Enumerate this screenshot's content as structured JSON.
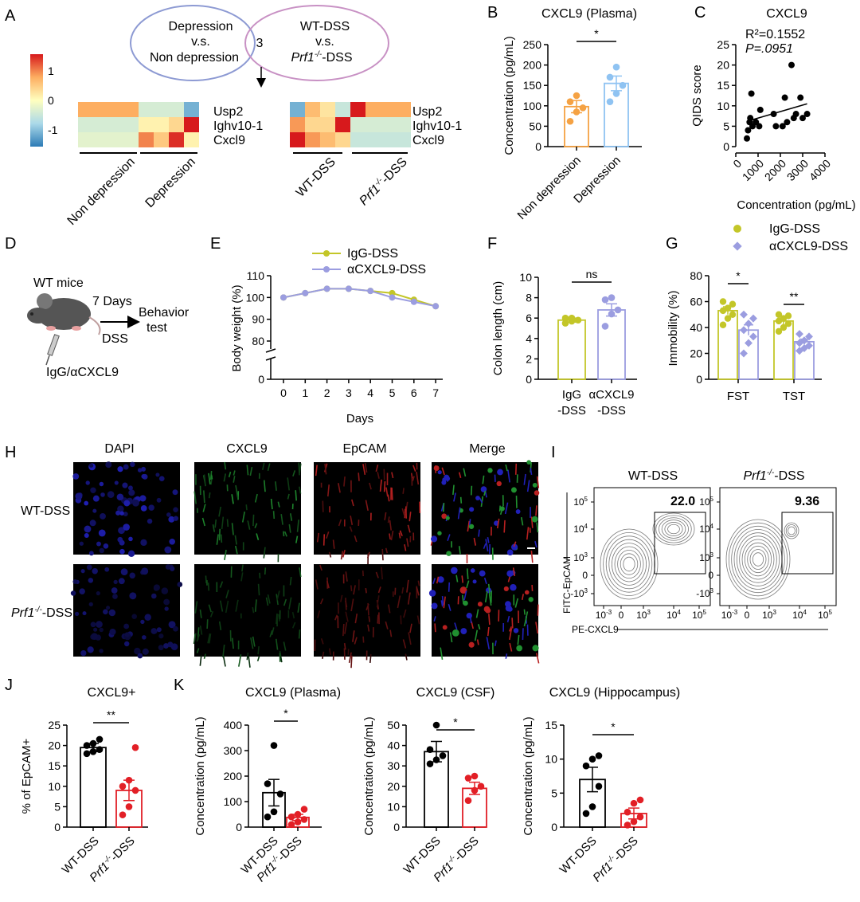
{
  "colors": {
    "orange": "#f5a243",
    "lightblue": "#8fc3f2",
    "olive": "#c3c628",
    "lavender": "#9b9de0",
    "red": "#e21f26",
    "black": "#000000",
    "venn_left": "#8d9ad3",
    "venn_right": "#c891c4"
  },
  "panel_labels": [
    "A",
    "B",
    "C",
    "D",
    "E",
    "F",
    "G",
    "H",
    "I",
    "J",
    "K"
  ],
  "panelA": {
    "venn_left": [
      "Depression",
      "v.s.",
      "Non depression"
    ],
    "venn_center": "3",
    "venn_right": [
      "WT-DSS",
      "v.s.",
      "-DSS"
    ],
    "prf1": "Prf1",
    "prf1_sup": "-/-",
    "colorbar_ticks": [
      "1",
      "0",
      "-1"
    ],
    "genes": [
      "Usp2",
      "Ighv10-1",
      "Cxcl9"
    ],
    "groups_left": [
      "Non depression",
      "Depression"
    ],
    "groups_right": [
      "WT-DSS",
      "-DSS"
    ],
    "heat_left": [
      [
        0.6,
        0.6,
        0.6,
        0.6,
        -0.3,
        -0.3,
        -0.3,
        -0.9
      ],
      [
        -0.3,
        -0.3,
        -0.3,
        -0.3,
        0.1,
        0.1,
        0.3,
        1.3
      ],
      [
        -0.2,
        -0.2,
        -0.2,
        -0.2,
        0.8,
        0.4,
        1.2,
        0.1
      ]
    ],
    "heat_right": [
      [
        -0.9,
        0.5,
        0.2,
        -0.4,
        1.3,
        0.6,
        0.6,
        0.6
      ],
      [
        0.7,
        0.3,
        0.3,
        1.3,
        -0.3,
        -0.3,
        -0.3,
        -0.3
      ],
      [
        1.3,
        0.7,
        0.5,
        0.3,
        -0.4,
        -0.4,
        -0.4,
        -0.4
      ]
    ]
  },
  "panelD": {
    "mice": "WT mice",
    "days": "7 Days",
    "dss": "DSS",
    "behavior": [
      "Behavior",
      "test"
    ],
    "treatment": "IgG/αCXCL9"
  },
  "panelH": {
    "cols": [
      "DAPI",
      "CXCL9",
      "EpCAM",
      "Merge"
    ],
    "col_colors": [
      "#1a1ae6",
      "#1c8c2c",
      "#e21f26",
      "#000000"
    ],
    "row1": "WT-DSS",
    "row2": "-DSS"
  },
  "panelI": {
    "titles": [
      "WT-DSS",
      "-DSS"
    ],
    "percents": [
      "22.0",
      "9.36"
    ],
    "ylabel": "FITC-EpCAM",
    "xlabel": "PE-CXCL9",
    "yticks": [
      "10",
      "10",
      "10",
      "0",
      "-10"
    ],
    "ysup": [
      "5",
      "4",
      "3",
      "",
      "3"
    ],
    "xticks": [
      "10",
      "0",
      "10",
      "10",
      "10"
    ],
    "xsup": [
      "-3",
      "",
      "3",
      "4",
      "5"
    ]
  },
  "chart_data": [
    {
      "id": "B",
      "type": "bar",
      "title": "CXCL9 (Plasma)",
      "ylabel": "Concentration (pg/mL)",
      "ylim": [
        0,
        250
      ],
      "yticks": [
        0,
        50,
        100,
        150,
        200,
        250
      ],
      "categories": [
        "Non depression",
        "Depression"
      ],
      "values": [
        98,
        155
      ],
      "errors": [
        15,
        18
      ],
      "points": [
        [
          62,
          85,
          95,
          110,
          125
        ],
        [
          110,
          130,
          150,
          170,
          195
        ]
      ],
      "sig": "*"
    },
    {
      "id": "C",
      "type": "scatter",
      "title": "CXCL9",
      "r2": "R²=0.1552",
      "p": "P=.0951",
      "xlabel": "Concentration (pg/mL)",
      "ylabel": "QIDS score",
      "xlim": [
        0,
        4000
      ],
      "ylim": [
        0,
        25
      ],
      "xticks": [
        0,
        1000,
        2000,
        3000,
        4000
      ],
      "yticks": [
        0,
        5,
        10,
        15,
        20,
        25
      ],
      "points": [
        [
          500,
          2
        ],
        [
          550,
          4
        ],
        [
          620,
          6
        ],
        [
          650,
          7
        ],
        [
          700,
          13
        ],
        [
          750,
          5
        ],
        [
          900,
          6
        ],
        [
          1050,
          5
        ],
        [
          1100,
          9
        ],
        [
          1700,
          8
        ],
        [
          1800,
          5
        ],
        [
          2100,
          5
        ],
        [
          2200,
          12
        ],
        [
          2300,
          6
        ],
        [
          2500,
          20
        ],
        [
          2600,
          7
        ],
        [
          2700,
          8
        ],
        [
          2900,
          12
        ],
        [
          3000,
          7
        ],
        [
          3200,
          8
        ]
      ],
      "fit": [
        [
          500,
          6.2
        ],
        [
          3200,
          10.5
        ]
      ]
    },
    {
      "id": "E",
      "type": "line",
      "xlabel": "Days",
      "ylabel": "Body weight (%)",
      "ylim": [
        80,
        110
      ],
      "yticks_upper": [
        80,
        90,
        100,
        110
      ],
      "ytick_lower": 0,
      "x": [
        0,
        1,
        2,
        3,
        4,
        5,
        6,
        7
      ],
      "series": [
        {
          "name": "IgG-DSS",
          "values": [
            100,
            102,
            104,
            104,
            103,
            102,
            99,
            96
          ]
        },
        {
          "name": "αCXCL9-DSS",
          "values": [
            100,
            102,
            104,
            104,
            103,
            100,
            98,
            96
          ]
        }
      ]
    },
    {
      "id": "F",
      "type": "bar",
      "ylabel": "Colon length (cm)",
      "ylim": [
        0,
        10
      ],
      "yticks": [
        0,
        2,
        4,
        6,
        8,
        10
      ],
      "categories": [
        "IgG -DSS",
        "αCXCL9 -DSS"
      ],
      "values": [
        5.8,
        6.8
      ],
      "errors": [
        0.2,
        0.6
      ],
      "points": [
        [
          5.5,
          5.7,
          5.8,
          6.0,
          6.0
        ],
        [
          5.2,
          6.4,
          6.8,
          7.8,
          8.0
        ]
      ],
      "sig": "ns"
    },
    {
      "id": "G",
      "type": "bar",
      "ylabel": "Immobility (%)",
      "ylim": [
        0,
        80
      ],
      "yticks": [
        0,
        20,
        40,
        60,
        80
      ],
      "categories": [
        "FST",
        "TST"
      ],
      "series": [
        {
          "name": "IgG-DSS",
          "values": [
            53,
            45
          ],
          "errors": [
            3,
            3
          ],
          "points": [
            [
              42,
              47,
              50,
              53,
              55,
              58,
              60
            ],
            [
              37,
              40,
              43,
              45,
              47,
              49,
              50
            ]
          ]
        },
        {
          "name": "αCXCL9-DSS",
          "values": [
            38,
            29
          ],
          "errors": [
            4,
            2
          ],
          "points": [
            [
              20,
              28,
              33,
              38,
              43,
              47,
              50
            ],
            [
              22,
              24,
              26,
              28,
              30,
              33,
              35
            ]
          ]
        }
      ],
      "sig": [
        "*",
        "**"
      ]
    },
    {
      "id": "J",
      "type": "bar",
      "title": "CXCL9+",
      "ylabel": "% of EpCAM+",
      "ylim": [
        0,
        25
      ],
      "yticks": [
        0,
        5,
        10,
        15,
        20,
        25
      ],
      "categories": [
        "WT-DSS",
        "-DSS"
      ],
      "values": [
        19.5,
        9
      ],
      "errors": [
        1,
        2.5
      ],
      "points": [
        [
          18,
          18.5,
          19,
          20,
          20.5,
          21.5
        ],
        [
          3,
          5,
          9,
          10,
          11.5,
          19.5
        ]
      ],
      "sig": "**"
    },
    {
      "id": "K1",
      "type": "bar",
      "title": "CXCL9 (Plasma)",
      "ylabel": "Concentration (pg/mL)",
      "ylim": [
        0,
        400
      ],
      "yticks": [
        0,
        100,
        200,
        300,
        400
      ],
      "categories": [
        "WT-DSS",
        "-DSS"
      ],
      "values": [
        135,
        38
      ],
      "errors": [
        52,
        12
      ],
      "points": [
        [
          40,
          60,
          130,
          170,
          320
        ],
        [
          10,
          20,
          30,
          40,
          50,
          70
        ]
      ],
      "sig": "*"
    },
    {
      "id": "K2",
      "type": "bar",
      "title": "CXCL9 (CSF)",
      "ylabel": "Concentration (pg/mL)",
      "ylim": [
        0,
        50
      ],
      "yticks": [
        0,
        10,
        20,
        30,
        40,
        50
      ],
      "categories": [
        "WT-DSS",
        "-DSS"
      ],
      "values": [
        37,
        19
      ],
      "errors": [
        5,
        3
      ],
      "points": [
        [
          31,
          33,
          35,
          38,
          50
        ],
        [
          13,
          18,
          20,
          24,
          25
        ]
      ],
      "sig": "*"
    },
    {
      "id": "K3",
      "type": "bar",
      "title": "CXCL9 (Hippocampus)",
      "ylabel": "Concentration (pg/mL)",
      "ylim": [
        0,
        15
      ],
      "yticks": [
        0,
        5,
        10,
        15
      ],
      "categories": [
        "WT-DSS",
        "-DSS"
      ],
      "values": [
        7,
        2
      ],
      "errors": [
        1.8,
        0.8
      ],
      "points": [
        [
          2,
          3,
          6,
          9,
          10,
          10.5
        ],
        [
          0.3,
          0.8,
          1.5,
          2.2,
          3.5,
          4
        ]
      ],
      "sig": "*"
    }
  ]
}
